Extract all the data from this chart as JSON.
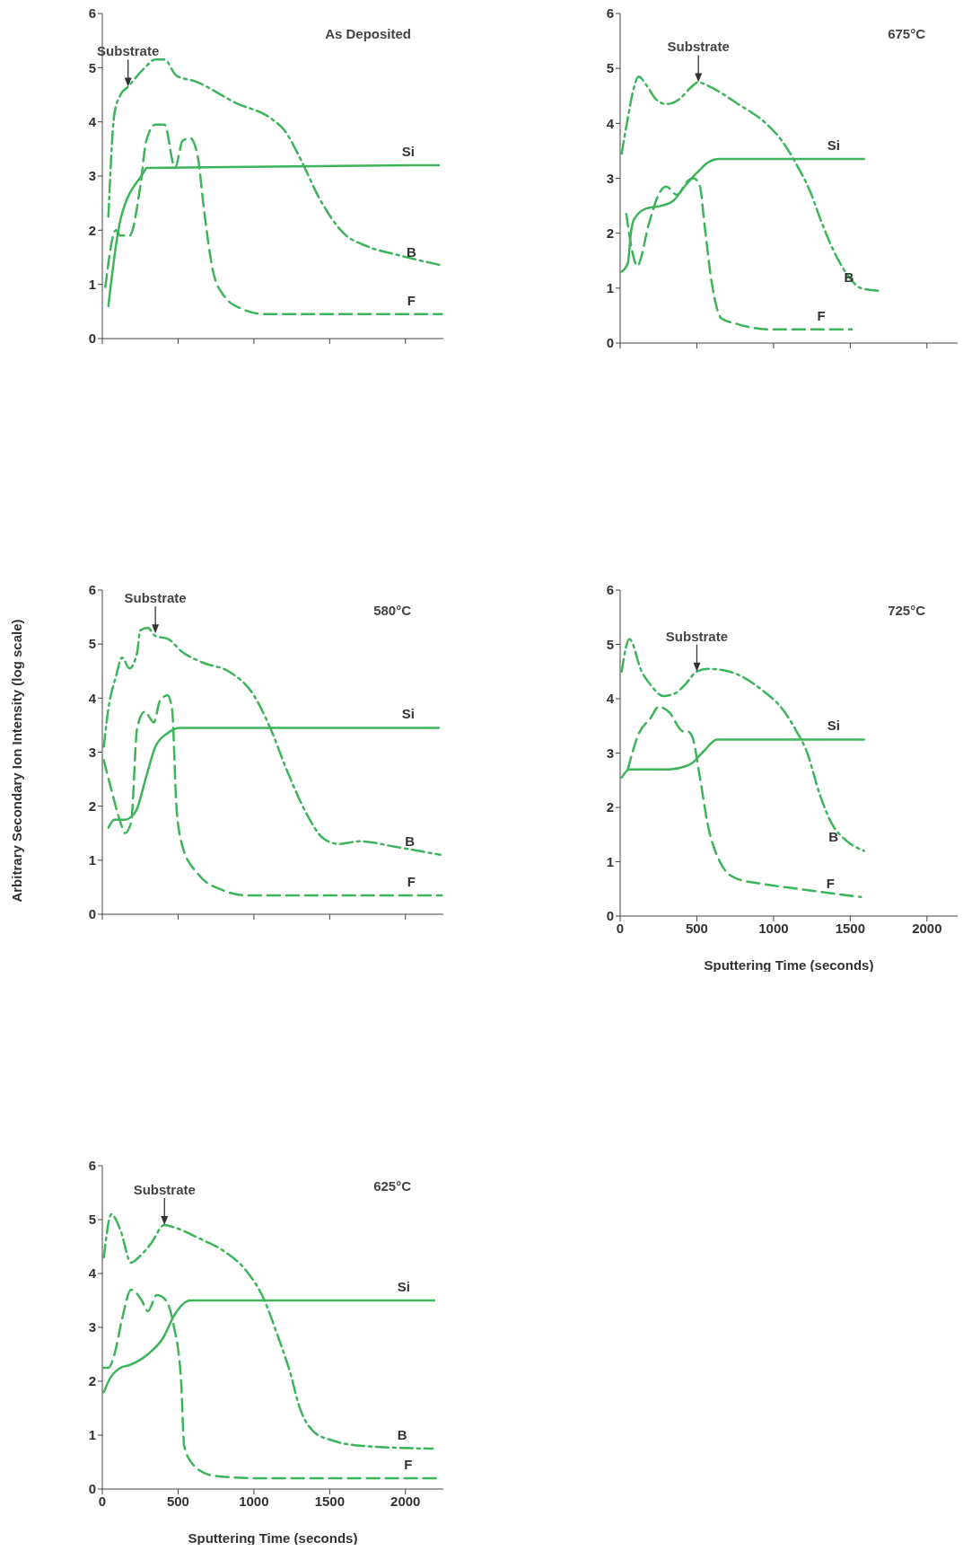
{
  "chart_data": [
    {
      "type": "line",
      "title": "As Deposited",
      "xlim": [
        0,
        2250
      ],
      "xticks": [
        {
          "value": 0,
          "label": null
        },
        {
          "value": 500,
          "label": null
        },
        {
          "value": 1000,
          "label": null
        },
        {
          "value": 1500,
          "label": null
        },
        {
          "value": 2000,
          "label": null
        }
      ],
      "ylim": [
        0,
        6
      ],
      "yticks": [
        0,
        1,
        2,
        3,
        4,
        5,
        6
      ],
      "tick_labels": "y",
      "marker": "none",
      "annotations": [
        {
          "text": "Substrate",
          "x": 170,
          "y": 4.65
        }
      ],
      "series": [
        {
          "name": "Si",
          "color": "#3cb55a",
          "line_style": "solid",
          "x": [
            40,
            120,
            280,
            290,
            2220
          ],
          "values": [
            0.6,
            2.2,
            3.1,
            3.15,
            3.2
          ]
        },
        {
          "name": "B",
          "color": "#3cb55a",
          "line_style": "dashdot",
          "x": [
            40,
            80,
            120,
            170,
            280,
            350,
            410,
            490,
            610,
            880,
            1120,
            1200,
            1310,
            1430,
            1590,
            1750,
            1940,
            2240
          ],
          "values": [
            2.25,
            4.15,
            4.5,
            4.65,
            5.0,
            5.15,
            5.15,
            4.85,
            4.75,
            4.35,
            4.05,
            3.85,
            3.3,
            2.6,
            1.95,
            1.7,
            1.55,
            1.35
          ]
        },
        {
          "name": "F",
          "color": "#3cb55a",
          "line_style": "dashed",
          "x": [
            20,
            90,
            120,
            180,
            250,
            290,
            350,
            410,
            480,
            530,
            580,
            630,
            670,
            730,
            800,
            920,
            1080,
            1390,
            2240
          ],
          "values": [
            0.95,
            2.0,
            1.9,
            1.9,
            2.8,
            3.65,
            3.95,
            3.95,
            3.15,
            3.65,
            3.7,
            3.35,
            2.4,
            1.25,
            0.8,
            0.55,
            0.45,
            0.45,
            0.45
          ]
        }
      ]
    },
    {
      "type": "line",
      "title": "675°C",
      "xlim": [
        0,
        2200
      ],
      "xticks": [
        {
          "value": 0,
          "label": null
        },
        {
          "value": 500,
          "label": null
        },
        {
          "value": 1000,
          "label": null
        },
        {
          "value": 1500,
          "label": null
        },
        {
          "value": 2000,
          "label": null
        }
      ],
      "ylim": [
        0,
        6
      ],
      "yticks": [
        0,
        1,
        2,
        3,
        4,
        5,
        6
      ],
      "tick_labels": "y",
      "marker": "none",
      "annotations": [
        {
          "text": "Substrate",
          "x": 510,
          "y": 4.75
        }
      ],
      "series": [
        {
          "name": "Si",
          "color": "#3cb55a",
          "line_style": "solid",
          "x": [
            10,
            50,
            70,
            90,
            170,
            270,
            350,
            420,
            500,
            580,
            640,
            1590
          ],
          "values": [
            1.3,
            1.45,
            2.0,
            2.25,
            2.45,
            2.5,
            2.6,
            2.85,
            3.1,
            3.3,
            3.35,
            3.35
          ]
        },
        {
          "name": "B",
          "color": "#3cb55a",
          "line_style": "dashdot",
          "x": [
            10,
            50,
            90,
            120,
            170,
            230,
            300,
            390,
            460,
            510,
            560,
            770,
            950,
            1050,
            1140,
            1240,
            1320,
            1380,
            1480,
            1570,
            1690
          ],
          "values": [
            3.45,
            4.1,
            4.65,
            4.85,
            4.7,
            4.45,
            4.35,
            4.45,
            4.65,
            4.75,
            4.7,
            4.35,
            4.0,
            3.7,
            3.3,
            2.75,
            2.15,
            1.75,
            1.25,
            1.0,
            0.95
          ]
        },
        {
          "name": "F",
          "color": "#3cb55a",
          "line_style": "dashed",
          "x": [
            40,
            100,
            110,
            190,
            250,
            300,
            370,
            440,
            480,
            520,
            550,
            600,
            660,
            760,
            970,
            1510
          ],
          "values": [
            2.35,
            1.45,
            1.4,
            2.2,
            2.7,
            2.85,
            2.7,
            2.95,
            3.0,
            2.85,
            2.15,
            1.05,
            0.45,
            0.35,
            0.25,
            0.25
          ]
        }
      ]
    },
    {
      "type": "line",
      "title": "580°C",
      "ylabel": "Arbitrary Secondary Ion Intensity (log scale)",
      "xlim": [
        0,
        2250
      ],
      "xticks": [
        {
          "value": 0,
          "label": null
        },
        {
          "value": 500,
          "label": null
        },
        {
          "value": 1000,
          "label": null
        },
        {
          "value": 1500,
          "label": null
        },
        {
          "value": 2000,
          "label": null
        }
      ],
      "ylim": [
        0,
        6
      ],
      "yticks": [
        0,
        1,
        2,
        3,
        4,
        5,
        6
      ],
      "tick_labels": "y",
      "marker": "none",
      "annotations": [
        {
          "text": "Substrate",
          "x": 350,
          "y": 5.2
        }
      ],
      "series": [
        {
          "name": "Si",
          "color": "#3cb55a",
          "line_style": "solid",
          "x": [
            40,
            80,
            150,
            220,
            290,
            350,
            430,
            510,
            2220
          ],
          "values": [
            1.6,
            1.75,
            1.75,
            1.9,
            2.55,
            3.1,
            3.35,
            3.45,
            3.45
          ]
        },
        {
          "name": "B",
          "color": "#3cb55a",
          "line_style": "dashdot",
          "x": [
            10,
            40,
            90,
            130,
            180,
            230,
            250,
            300,
            350,
            430,
            530,
            670,
            830,
            1000,
            1100,
            1220,
            1340,
            1460,
            1560,
            1700,
            1930,
            2230
          ],
          "values": [
            3.1,
            3.8,
            4.4,
            4.75,
            4.55,
            4.85,
            5.25,
            5.3,
            5.15,
            5.1,
            4.85,
            4.65,
            4.5,
            4.05,
            3.5,
            2.65,
            1.9,
            1.4,
            1.3,
            1.35,
            1.25,
            1.1
          ]
        },
        {
          "name": "F",
          "color": "#3cb55a",
          "line_style": "dashed",
          "x": [
            10,
            60,
            120,
            150,
            190,
            230,
            280,
            340,
            380,
            430,
            460,
            490,
            530,
            630,
            790,
            960,
            2240
          ],
          "values": [
            2.85,
            2.3,
            1.7,
            1.5,
            1.7,
            3.45,
            3.75,
            3.55,
            3.95,
            4.05,
            3.8,
            1.95,
            1.25,
            0.75,
            0.45,
            0.35,
            0.35
          ]
        }
      ]
    },
    {
      "type": "line",
      "title": "725°C",
      "xlabel": "Sputtering Time (seconds)",
      "xlim": [
        0,
        2200
      ],
      "xticks": [
        0,
        500,
        1000,
        1500,
        2000
      ],
      "ylim": [
        0,
        6
      ],
      "yticks": [
        0,
        1,
        2,
        3,
        4,
        5,
        6
      ],
      "marker": "none",
      "annotations": [
        {
          "text": "Substrate",
          "x": 500,
          "y": 4.5
        }
      ],
      "series": [
        {
          "name": "Si",
          "color": "#3cb55a",
          "line_style": "solid",
          "x": [
            10,
            60,
            180,
            320,
            460,
            550,
            630,
            1590
          ],
          "values": [
            2.55,
            2.7,
            2.7,
            2.7,
            2.8,
            3.05,
            3.25,
            3.25
          ]
        },
        {
          "name": "B",
          "color": "#3cb55a",
          "line_style": "dashdot",
          "x": [
            10,
            60,
            140,
            200,
            280,
            360,
            420,
            500,
            570,
            710,
            930,
            1060,
            1140,
            1220,
            1300,
            1380,
            1470,
            1590
          ],
          "values": [
            4.5,
            5.1,
            4.5,
            4.25,
            4.05,
            4.1,
            4.25,
            4.5,
            4.55,
            4.5,
            4.15,
            3.8,
            3.45,
            3.0,
            2.25,
            1.7,
            1.4,
            1.2
          ]
        },
        {
          "name": "F",
          "color": "#3cb55a",
          "line_style": "dashed",
          "x": [
            50,
            120,
            200,
            250,
            320,
            410,
            440,
            470,
            520,
            570,
            650,
            750,
            910,
            1160,
            1570
          ],
          "values": [
            2.7,
            3.35,
            3.65,
            3.85,
            3.75,
            3.4,
            3.4,
            3.3,
            2.55,
            1.7,
            1.0,
            0.7,
            0.6,
            0.5,
            0.35
          ]
        }
      ]
    },
    {
      "type": "line",
      "title": "625°C",
      "xlabel": "Sputtering Time (seconds)",
      "xlim": [
        0,
        2250
      ],
      "xticks": [
        0,
        500,
        1000,
        1500,
        2000
      ],
      "ylim": [
        0,
        6
      ],
      "yticks": [
        0,
        1,
        2,
        3,
        4,
        5,
        6
      ],
      "marker": "none",
      "annotations": [
        {
          "text": "Substrate",
          "x": 410,
          "y": 4.9
        }
      ],
      "series": [
        {
          "name": "Si",
          "color": "#3cb55a",
          "line_style": "solid",
          "x": [
            10,
            50,
            120,
            180,
            300,
            400,
            480,
            580,
            680,
            2190
          ],
          "values": [
            1.8,
            2.05,
            2.25,
            2.3,
            2.5,
            2.8,
            3.25,
            3.5,
            3.5,
            3.5
          ]
        },
        {
          "name": "B",
          "color": "#3cb55a",
          "line_style": "dashdot",
          "x": [
            10,
            60,
            120,
            190,
            240,
            320,
            410,
            480,
            640,
            810,
            950,
            1070,
            1150,
            1230,
            1310,
            1400,
            1520,
            1720,
            2180
          ],
          "values": [
            4.3,
            5.1,
            4.8,
            4.2,
            4.3,
            4.55,
            4.9,
            4.85,
            4.65,
            4.4,
            4.05,
            3.5,
            2.9,
            2.25,
            1.45,
            1.05,
            0.9,
            0.8,
            0.75
          ]
        },
        {
          "name": "F",
          "color": "#3cb55a",
          "line_style": "dashed",
          "x": [
            10,
            40,
            80,
            130,
            190,
            260,
            300,
            360,
            420,
            470,
            520,
            540,
            600,
            730,
            1030,
            2220
          ],
          "values": [
            2.25,
            2.25,
            2.5,
            3.15,
            3.7,
            3.5,
            3.3,
            3.6,
            3.5,
            3.05,
            2.0,
            0.8,
            0.45,
            0.25,
            0.2,
            0.2
          ]
        }
      ]
    }
  ]
}
